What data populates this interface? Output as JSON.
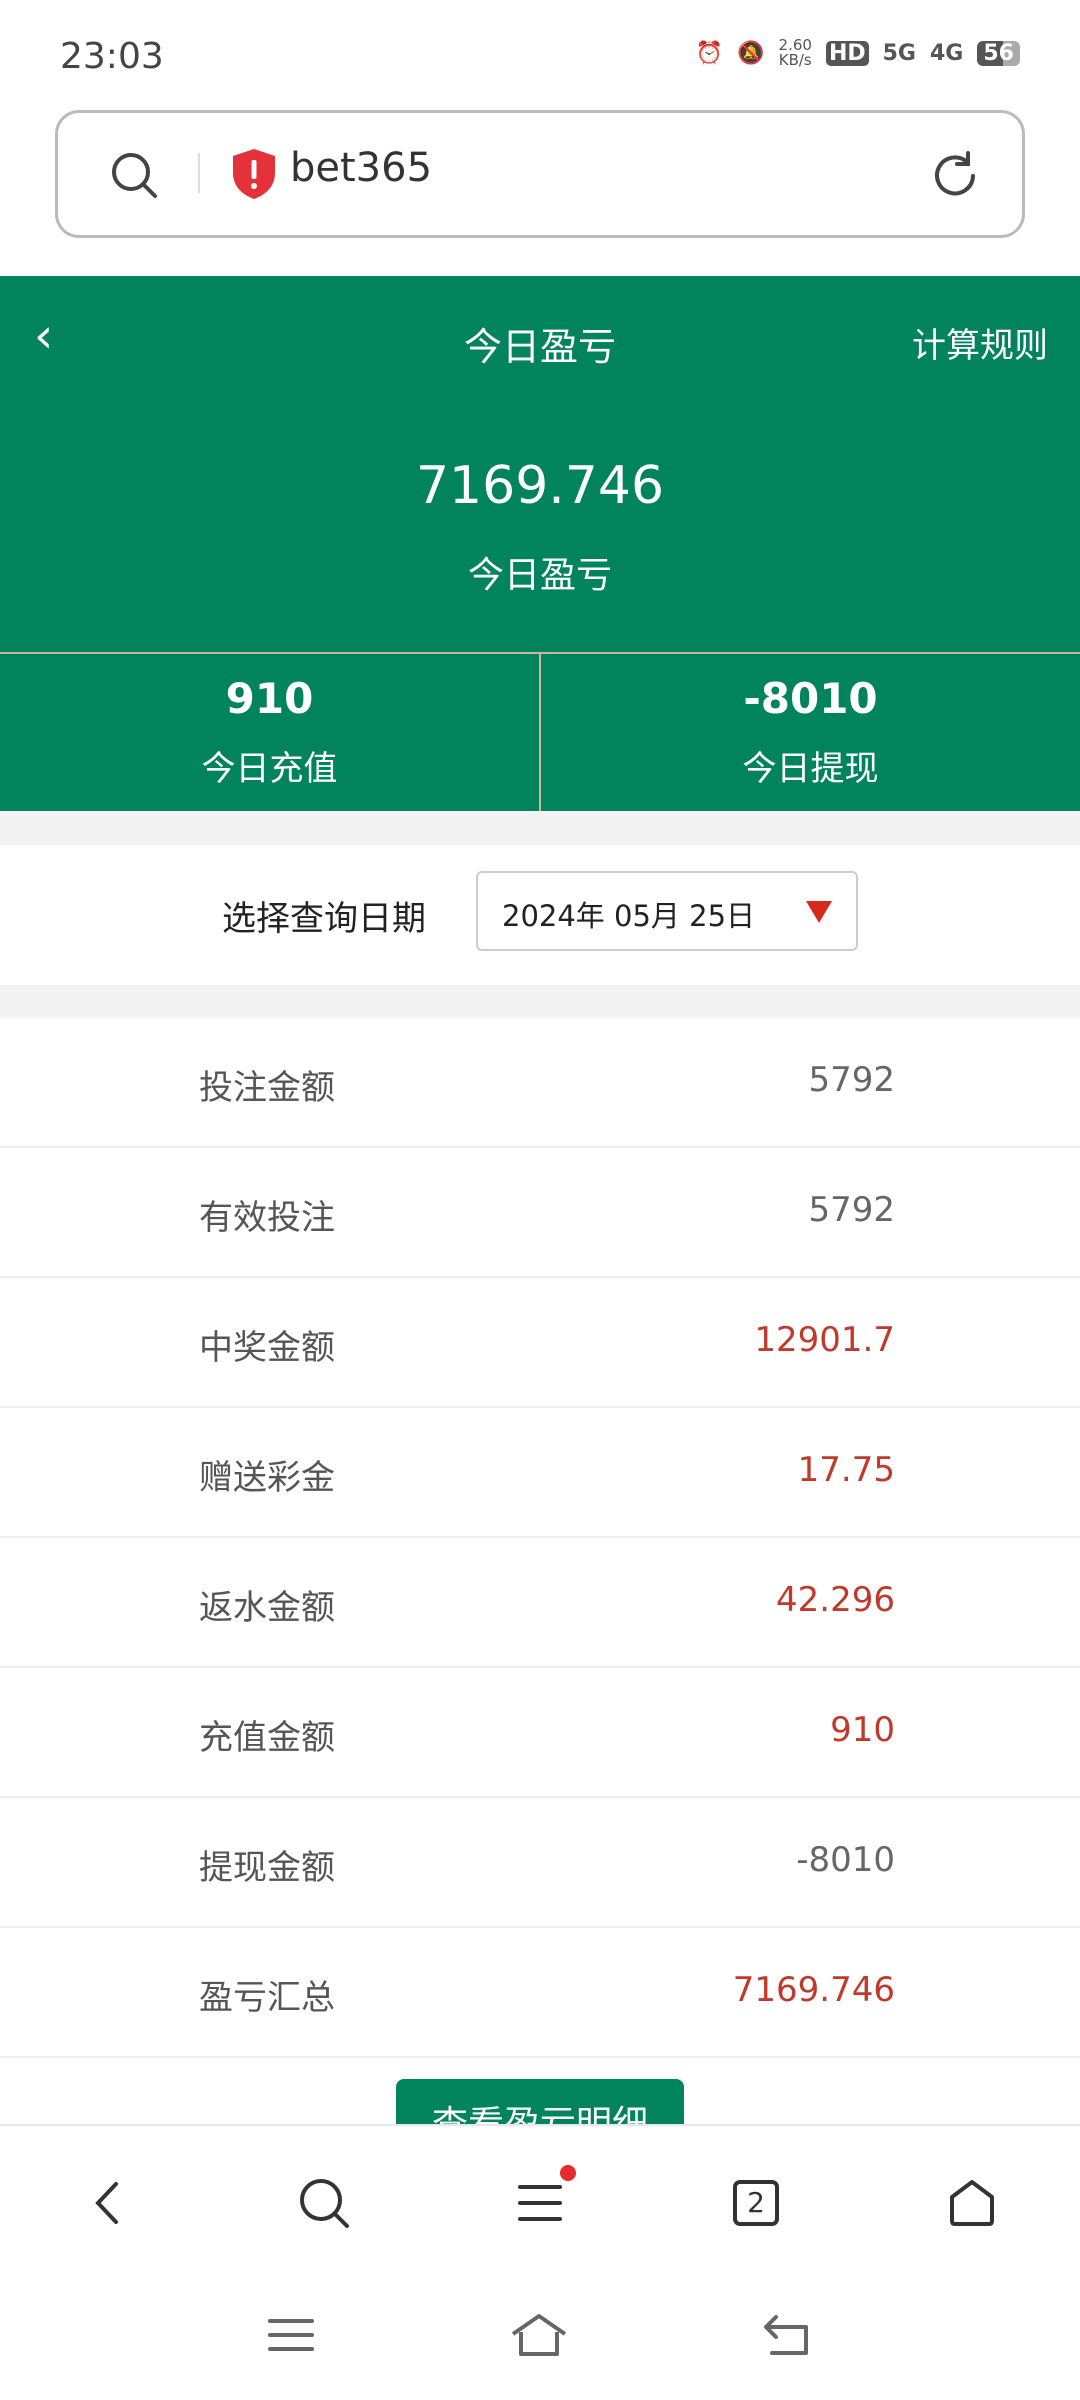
{
  "status_bar": {
    "time": "23:03",
    "net_speed": "2.60",
    "net_unit": "KB/s",
    "hd": "HD",
    "sig1": "5G",
    "sig2": "4G",
    "battery": "56"
  },
  "url_bar": {
    "host": "bet365"
  },
  "header": {
    "title": "今日盈亏",
    "rules": "计算规则",
    "amount": "7169.746",
    "amount_label": "今日盈亏"
  },
  "stats": [
    {
      "value": "910",
      "label": "今日充值"
    },
    {
      "value": "-8010",
      "label": "今日提现"
    }
  ],
  "date": {
    "label": "选择查询日期",
    "value": "2024年 05月 25日"
  },
  "rows": [
    {
      "label": "投注金额",
      "value": "5792",
      "red": false
    },
    {
      "label": "有效投注",
      "value": "5792",
      "red": false
    },
    {
      "label": "中奖金额",
      "value": "12901.7",
      "red": true
    },
    {
      "label": "赠送彩金",
      "value": "17.75",
      "red": true
    },
    {
      "label": "返水金额",
      "value": "42.296",
      "red": true
    },
    {
      "label": "充值金额",
      "value": "910",
      "red": true
    },
    {
      "label": "提现金额",
      "value": "-8010",
      "red": false
    },
    {
      "label": "盈亏汇总",
      "value": "7169.746",
      "red": true
    }
  ],
  "detail_button": "查看盈亏明细",
  "tabs_count": "2",
  "colors": {
    "brand_green": "#01835c",
    "positive_red": "#c0392b"
  }
}
